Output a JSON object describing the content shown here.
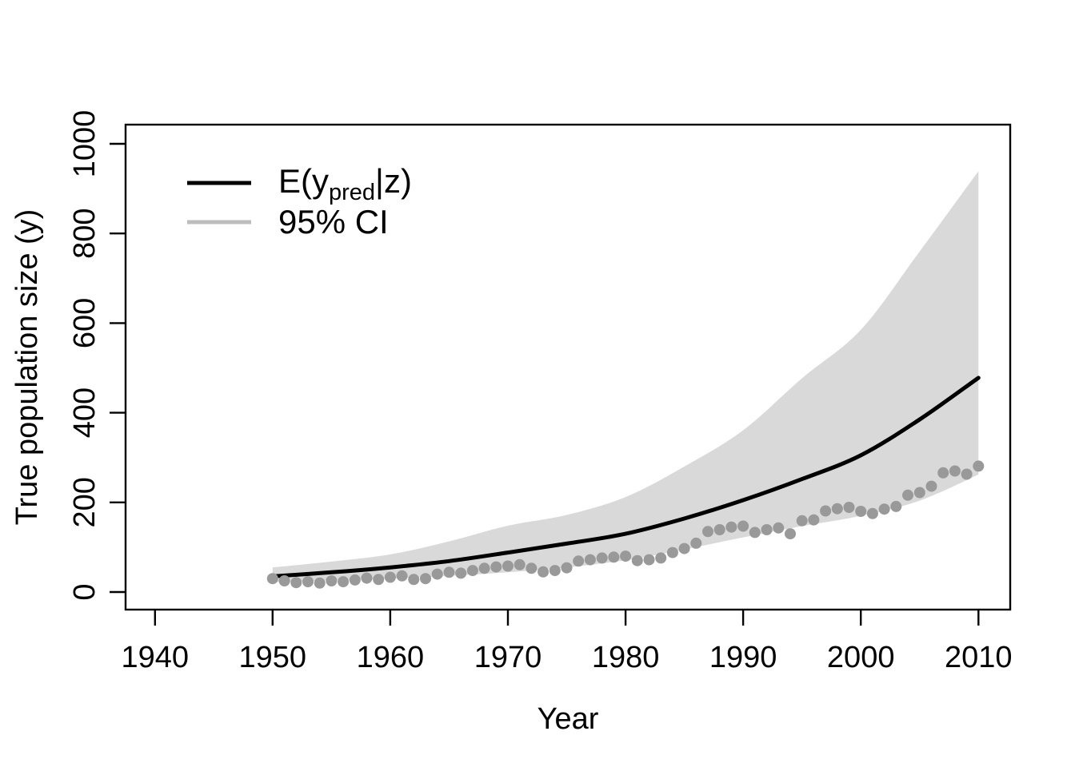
{
  "page": {
    "background": "#ffffff"
  },
  "axes": {
    "xlabel": "Year",
    "ylabel": "True population size (y)"
  },
  "legend": {
    "position": "topleft",
    "entry1": {
      "prefix": "E(y",
      "subscript": "pred",
      "suffix": "|z)",
      "line_color": "#000000"
    },
    "entry2": {
      "label": "95% CI",
      "line_color": "#bdbdbd"
    }
  },
  "chart_data": {
    "type": "line",
    "title": "",
    "xlabel": "Year",
    "ylabel": "True population size (y)",
    "x_ticks": [
      1940,
      1950,
      1960,
      1970,
      1980,
      1990,
      2000,
      2010
    ],
    "y_ticks": [
      0,
      200,
      400,
      600,
      800,
      1000
    ],
    "xlim": [
      1937.5,
      2012.7
    ],
    "ylim": [
      -39.2,
      1042.8
    ],
    "grid": false,
    "legend_position": "topleft",
    "colors": {
      "mean_line": "#000000",
      "ci_band_fill": "#d9d9d9",
      "ci_legend_line": "#bdbdbd",
      "points": "#999999",
      "axis": "#000000"
    },
    "mean_line": {
      "name": "E(y_pred|z)",
      "x": [
        1950,
        1955,
        1960,
        1965,
        1970,
        1975,
        1980,
        1985,
        1990,
        1995,
        2000,
        2005,
        2010
      ],
      "values": [
        35,
        44,
        55,
        69,
        88,
        108,
        130,
        164,
        205,
        252,
        305,
        385,
        478
      ]
    },
    "ci_band": {
      "name": "95% CI",
      "x": [
        1950,
        1955,
        1960,
        1965,
        1970,
        1975,
        1980,
        1985,
        1990,
        1995,
        2000,
        2005,
        2010
      ],
      "lower": [
        22,
        26,
        30,
        36,
        44,
        55,
        71,
        95,
        122,
        147,
        170,
        204,
        262
      ],
      "upper": [
        55,
        68,
        84,
        113,
        148,
        172,
        212,
        280,
        361,
        477,
        585,
        760,
        939
      ]
    },
    "points": {
      "name": "true population size (y)",
      "x": [
        1950,
        1951,
        1952,
        1953,
        1954,
        1955,
        1956,
        1957,
        1958,
        1959,
        1960,
        1961,
        1962,
        1963,
        1964,
        1965,
        1966,
        1967,
        1968,
        1969,
        1970,
        1971,
        1972,
        1973,
        1974,
        1975,
        1976,
        1977,
        1978,
        1979,
        1980,
        1981,
        1982,
        1983,
        1984,
        1985,
        1986,
        1987,
        1988,
        1989,
        1990,
        1991,
        1992,
        1993,
        1994,
        1995,
        1996,
        1997,
        1998,
        1999,
        2000,
        2001,
        2002,
        2003,
        2004,
        2005,
        2006,
        2007,
        2008,
        2009,
        2010
      ],
      "values": [
        30,
        25,
        21,
        23,
        20,
        25,
        23,
        27,
        31,
        28,
        33,
        36,
        28,
        30,
        40,
        44,
        42,
        48,
        53,
        56,
        58,
        61,
        53,
        45,
        48,
        54,
        69,
        72,
        76,
        78,
        80,
        70,
        72,
        76,
        88,
        97,
        109,
        135,
        139,
        145,
        147,
        133,
        139,
        143,
        130,
        159,
        161,
        181,
        186,
        189,
        180,
        175,
        185,
        191,
        216,
        222,
        236,
        266,
        270,
        263,
        281
      ]
    }
  }
}
